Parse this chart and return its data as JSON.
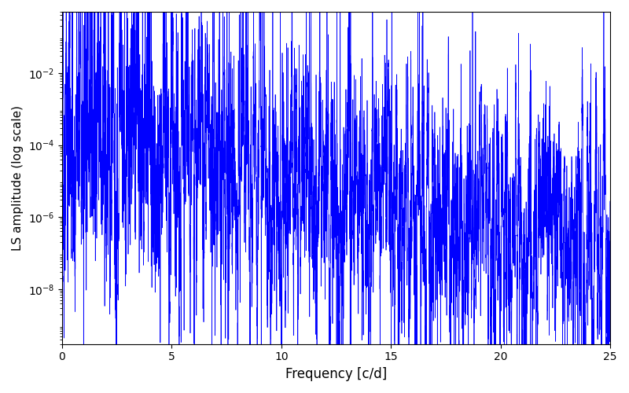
{
  "xlabel": "Frequency [c/d]",
  "ylabel": "LS amplitude (log scale)",
  "xlim": [
    0,
    25
  ],
  "ylim": [
    3e-10,
    0.5
  ],
  "line_color": "#0000FF",
  "line_width": 0.5,
  "yticks": [
    1e-08,
    1e-06,
    0.0001,
    0.01
  ],
  "xticks": [
    0,
    5,
    10,
    15,
    20,
    25
  ],
  "seed": 12345,
  "n_points": 12000,
  "freq_max": 25.0
}
